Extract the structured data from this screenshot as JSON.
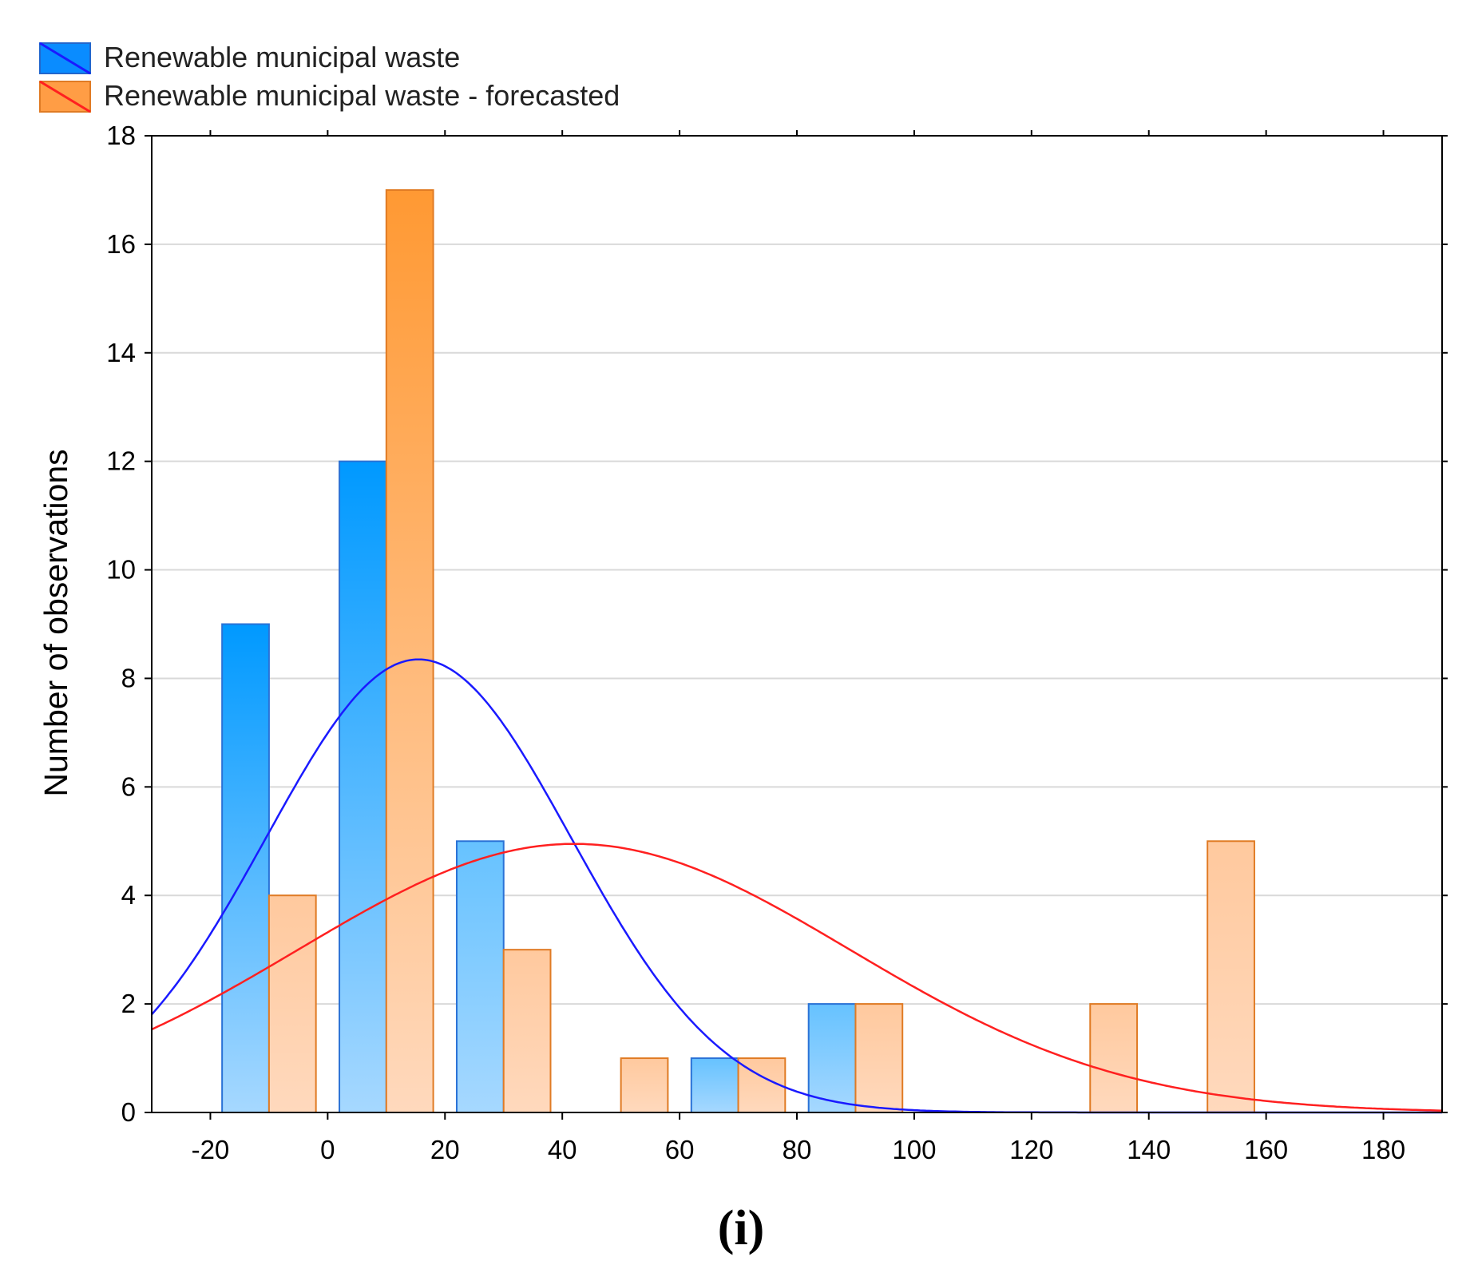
{
  "chart_data": {
    "type": "bar",
    "title": "",
    "caption": "(i)",
    "xlabel": "",
    "ylabel": "Number of observations",
    "xlim": [
      -30,
      190
    ],
    "ylim": [
      0,
      18
    ],
    "xticks": [
      -20,
      0,
      20,
      40,
      60,
      80,
      100,
      120,
      140,
      160,
      180
    ],
    "yticks": [
      0,
      2,
      4,
      6,
      8,
      10,
      12,
      14,
      16,
      18
    ],
    "grid": true,
    "legend_position": "top-left, above plot",
    "bin_width": 8,
    "series": [
      {
        "name": "Renewable municipal waste",
        "color": "#1a8cff",
        "curve_color": "#1a1aff",
        "bins": [
          {
            "start": -18,
            "end": -10,
            "count": 9
          },
          {
            "start": 2,
            "end": 10,
            "count": 12
          },
          {
            "start": 22,
            "end": 30,
            "count": 5
          },
          {
            "start": 62,
            "end": 70,
            "count": 1
          },
          {
            "start": 82,
            "end": 90,
            "count": 2
          }
        ],
        "normal_fit": {
          "mean": 15.5,
          "sd": 26,
          "peak": 8.35
        }
      },
      {
        "name": "Renewable municipal waste - forecasted",
        "color": "#ff9933",
        "curve_color": "#ff2020",
        "bins": [
          {
            "start": -10,
            "end": -2,
            "count": 4
          },
          {
            "start": 10,
            "end": 18,
            "count": 17
          },
          {
            "start": 30,
            "end": 38,
            "count": 3
          },
          {
            "start": 50,
            "end": 58,
            "count": 1
          },
          {
            "start": 70,
            "end": 78,
            "count": 1
          },
          {
            "start": 90,
            "end": 98,
            "count": 2
          },
          {
            "start": 130,
            "end": 138,
            "count": 2
          },
          {
            "start": 150,
            "end": 158,
            "count": 5
          }
        ],
        "normal_fit": {
          "mean": 42,
          "sd": 47,
          "peak": 4.95
        }
      }
    ]
  }
}
